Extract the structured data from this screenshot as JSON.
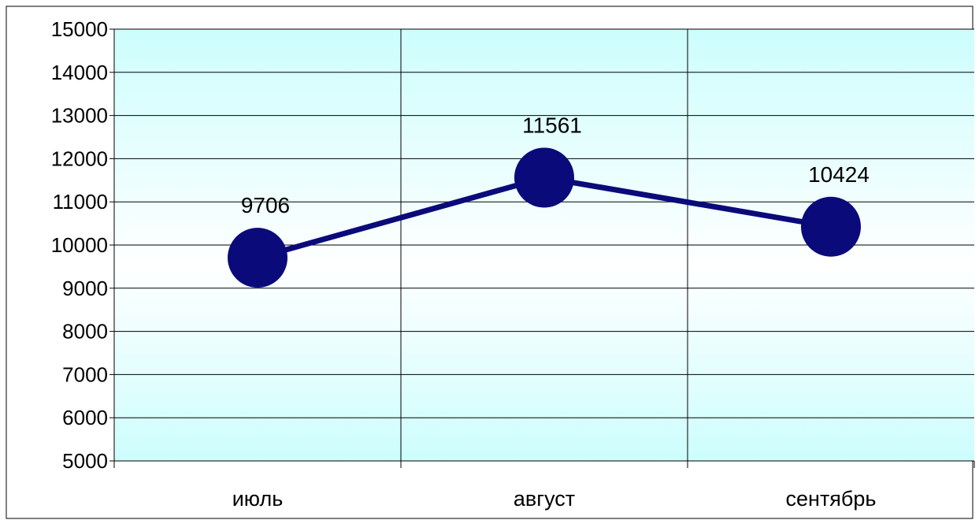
{
  "chart_data": {
    "type": "line",
    "categories": [
      "июль",
      "август",
      "сентябрь"
    ],
    "series": [
      {
        "values": [
          9706,
          11561,
          10424
        ]
      }
    ],
    "data_labels": [
      "9706",
      "11561",
      "10424"
    ],
    "ylim": [
      5000,
      15000
    ],
    "y_ticks": [
      5000,
      6000,
      7000,
      8000,
      9000,
      10000,
      11000,
      12000,
      13000,
      14000,
      15000
    ],
    "grid": true,
    "legend": "none",
    "colors": {
      "line": "#0a0a7a",
      "marker": "#0a0a7a",
      "plot_top": "#cdfdfd",
      "plot_mid": "#ffffff",
      "plot_bottom": "#cdfdfd",
      "grid": "#000000"
    }
  }
}
